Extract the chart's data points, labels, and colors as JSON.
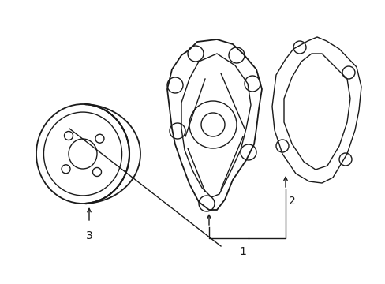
{
  "background_color": "#ffffff",
  "line_color": "#1a1a1a",
  "line_width": 1.0,
  "fig_width": 4.89,
  "fig_height": 3.6,
  "dpi": 100,
  "label1_text": "1",
  "label2_text": "2",
  "label3_text": "3",
  "label_fontsize": 9
}
